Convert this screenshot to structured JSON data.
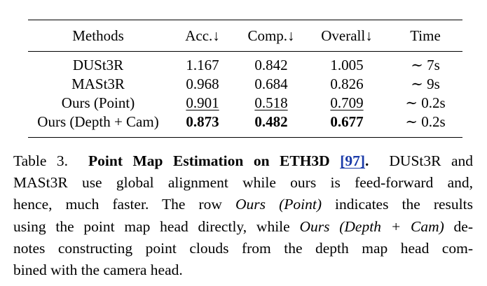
{
  "table": {
    "headers": {
      "methods": "Methods",
      "acc": "Acc.↓",
      "comp": "Comp.↓",
      "overall": "Overall↓",
      "time": "Time"
    },
    "rows": [
      {
        "method": "DUSt3R",
        "acc": "1.167",
        "comp": "0.842",
        "overall": "1.005",
        "time": "∼ 7s"
      },
      {
        "method": "MASt3R",
        "acc": "0.968",
        "comp": "0.684",
        "overall": "0.826",
        "time": "∼ 9s"
      },
      {
        "method": "Ours (Point)",
        "acc": "0.901",
        "comp": "0.518",
        "overall": "0.709",
        "time": "∼ 0.2s"
      },
      {
        "method": "Ours (Depth + Cam)",
        "acc": "0.873",
        "comp": "0.482",
        "overall": "0.677",
        "time": "∼ 0.2s"
      }
    ]
  },
  "caption": {
    "label": "Table 3.",
    "title": "Point Map Estimation on ETH3D",
    "citation": "[97]",
    "title_end": ".",
    "line1_tail": "DUSt3R and",
    "line2": "MASt3R use global alignment while ours is feed-forward and,",
    "line3_a": "hence, much faster.  The row ",
    "line3_italic": "Ours (Point)",
    "line3_b": " indicates the results",
    "line4_a": "using the point map head directly, while ",
    "line4_italic": "Ours (Depth + Cam)",
    "line4_b": " de-",
    "line5": "notes constructing point clouds from the depth map head com-",
    "line6": "bined with the camera head."
  }
}
